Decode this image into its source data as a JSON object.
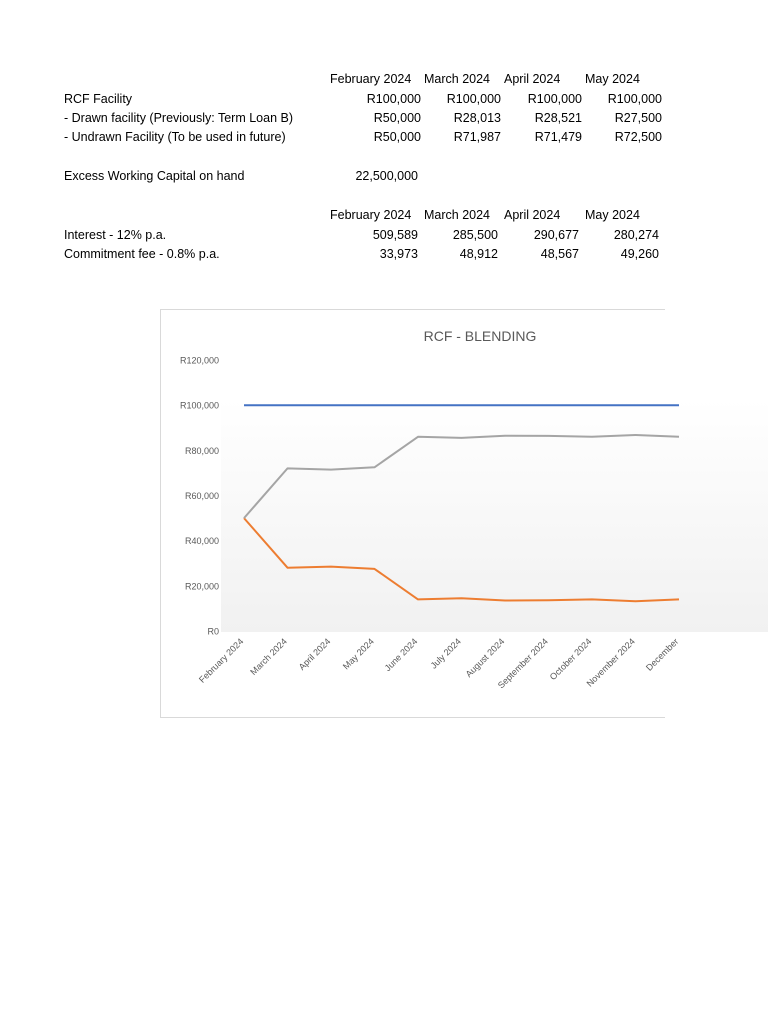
{
  "table1": {
    "months": [
      "February 2024",
      "March 2024",
      "April 2024",
      "May 2024"
    ],
    "rows": [
      {
        "label": "RCF Facility",
        "values": [
          "R100,000",
          "R100,000",
          "R100,000",
          "R100,000"
        ]
      },
      {
        "label": "- Drawn facility (Previously: Term Loan B)",
        "values": [
          "R50,000",
          "R28,013",
          "R28,521",
          "R27,500"
        ]
      },
      {
        "label": "- Undrawn Facility (To be used in future)",
        "values": [
          "R50,000",
          "R71,987",
          "R71,479",
          "R72,500"
        ]
      }
    ]
  },
  "excess": {
    "label": "Excess Working Capital on hand",
    "value": "22,500,000"
  },
  "table2": {
    "months": [
      "February 2024",
      "March 2024",
      "April 2024",
      "May 2024"
    ],
    "rows": [
      {
        "label": "Interest - 12% p.a.",
        "values": [
          "509,589",
          "285,500",
          "290,677",
          "280,274"
        ]
      },
      {
        "label": "Commitment fee - 0.8% p.a.",
        "values": [
          "33,973",
          "48,912",
          "48,567",
          "49,260"
        ]
      }
    ]
  },
  "colors": {
    "facility": "#4472c4",
    "drawn": "#ed7d31",
    "undrawn": "#a5a5a5",
    "title": "#595959",
    "axis": "#595959"
  },
  "chart_data": {
    "type": "line",
    "title": "RCF - BLENDING",
    "categories": [
      "February 2024",
      "March 2024",
      "April 2024",
      "May 2024",
      "June 2024",
      "July 2024",
      "August 2024",
      "September 2024",
      "October 2024",
      "November 2024",
      "December"
    ],
    "series": [
      {
        "name": "RCF Facility",
        "values": [
          100000,
          100000,
          100000,
          100000,
          100000,
          100000,
          100000,
          100000,
          100000,
          100000,
          100000
        ]
      },
      {
        "name": "Drawn facility",
        "values": [
          50000,
          28013,
          28521,
          27500,
          14000,
          14500,
          13500,
          13600,
          14000,
          13200,
          14000
        ]
      },
      {
        "name": "Undrawn Facility",
        "values": [
          50000,
          71987,
          71479,
          72500,
          86000,
          85500,
          86500,
          86400,
          86000,
          86800,
          86000
        ]
      }
    ],
    "yticks": [
      "R0",
      "R20,000",
      "R40,000",
      "R60,000",
      "R80,000",
      "R100,000",
      "R120,000"
    ],
    "ylim": [
      0,
      120000
    ],
    "xlabel": "",
    "ylabel": ""
  }
}
